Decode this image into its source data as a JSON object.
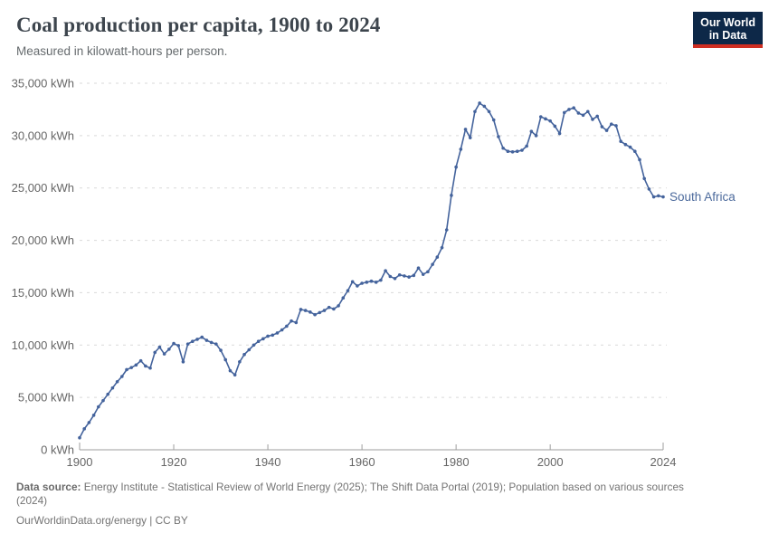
{
  "header": {
    "title": "Coal production per capita, 1900 to 2024",
    "subtitle": "Measured in kilowatt-hours per person."
  },
  "logo": {
    "line1": "Our World",
    "line2": "in Data",
    "bg_color": "#0d2848",
    "accent_color": "#cf2e22"
  },
  "chart_data": {
    "type": "line",
    "title": "Coal production per capita, 1900 to 2024",
    "xlabel": "",
    "ylabel": "kWh per person",
    "xlim": [
      1900,
      2024
    ],
    "ylim": [
      0,
      35000
    ],
    "grid": "dashed horizontal",
    "legend_position": "end-of-line label",
    "xticks": [
      1900,
      1920,
      1940,
      1960,
      1980,
      2000,
      2024
    ],
    "yticks": [
      0,
      5000,
      10000,
      15000,
      20000,
      25000,
      30000,
      35000
    ],
    "ytick_suffix": " kWh",
    "axis_color": "#9e9e9e",
    "grid_color": "#d9d9d9",
    "tick_label_color": "#666666",
    "series": [
      {
        "name": "South Africa",
        "color": "#44639c",
        "label_color": "#4c6a9c",
        "x_start": 1900,
        "x_step": 1,
        "values": [
          1150,
          2000,
          2600,
          3300,
          4100,
          4700,
          5300,
          5900,
          6500,
          7000,
          7650,
          7850,
          8100,
          8500,
          8000,
          7800,
          9300,
          9800,
          9150,
          9600,
          10150,
          9950,
          8400,
          10100,
          10350,
          10550,
          10750,
          10450,
          10250,
          10100,
          9500,
          8600,
          7550,
          7150,
          8400,
          9100,
          9550,
          10000,
          10350,
          10600,
          10850,
          10950,
          11150,
          11450,
          11800,
          12300,
          12150,
          13400,
          13300,
          13150,
          12900,
          13100,
          13300,
          13600,
          13450,
          13750,
          14500,
          15200,
          16050,
          15650,
          15900,
          16000,
          16100,
          16000,
          16200,
          17100,
          16550,
          16350,
          16700,
          16600,
          16500,
          16650,
          17350,
          16750,
          17000,
          17700,
          18400,
          19300,
          21000,
          24300,
          27000,
          28700,
          30600,
          29800,
          32300,
          33100,
          32800,
          32300,
          31500,
          29900,
          28800,
          28500,
          28450,
          28500,
          28600,
          29000,
          30400,
          30000,
          31800,
          31600,
          31400,
          30900,
          30200,
          32200,
          32500,
          32650,
          32150,
          31950,
          32300,
          31550,
          31850,
          30850,
          30500,
          31100,
          30950,
          29450,
          29150,
          28900,
          28500,
          27700,
          25900,
          24900,
          24150,
          24250,
          24150
        ]
      }
    ]
  },
  "footer": {
    "source_label": "Data source:",
    "source_text": "Energy Institute - Statistical Review of World Energy (2025); The Shift Data Portal (2019); Population based on various sources",
    "source_text2": "(2024)",
    "citation": "OurWorldinData.org/energy | CC BY"
  }
}
